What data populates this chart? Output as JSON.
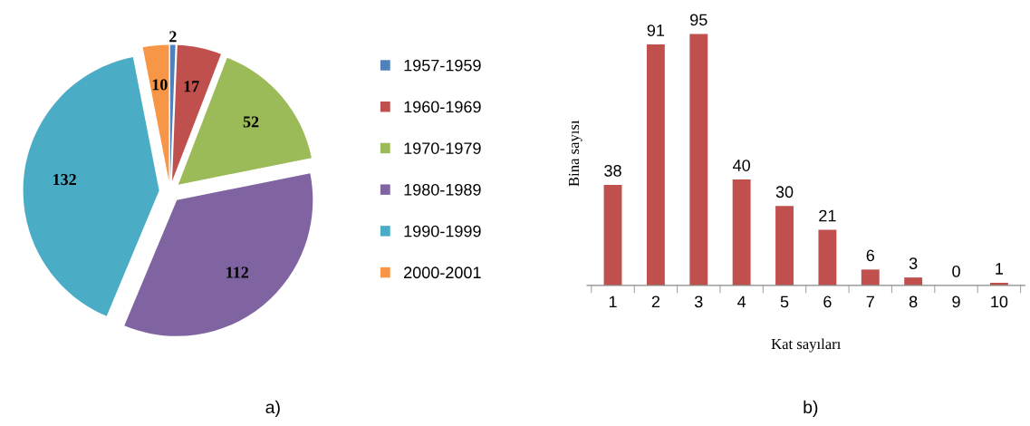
{
  "chart_data": [
    {
      "type": "pie",
      "categories": [
        "1957-1959",
        "1960-1969",
        "1970-1979",
        "1980-1989",
        "1990-1999",
        "2000-2001"
      ],
      "values": [
        2,
        17,
        52,
        112,
        132,
        10
      ],
      "colors": [
        "#4f81bd",
        "#c0504d",
        "#9bbb59",
        "#8064a2",
        "#4bacc6",
        "#f79646"
      ],
      "data_labels": true,
      "legend": "right",
      "annotations": [
        "a)"
      ]
    },
    {
      "type": "bar",
      "categories": [
        "1",
        "2",
        "3",
        "4",
        "5",
        "6",
        "7",
        "8",
        "9",
        "10"
      ],
      "values": [
        38,
        91,
        95,
        40,
        30,
        21,
        6,
        3,
        0,
        1
      ],
      "color": "#c0504d",
      "data_labels": true,
      "xlabel": "Kat sayıları",
      "ylabel": "Bina sayısı",
      "annotations": [
        "b)"
      ]
    }
  ]
}
